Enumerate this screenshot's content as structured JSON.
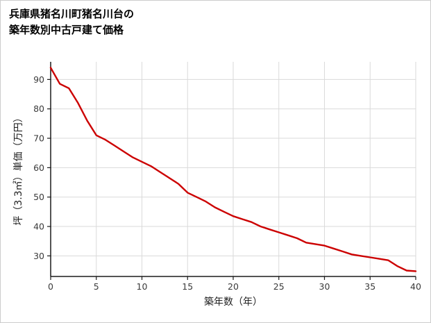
{
  "page": {
    "background": "#ffffff",
    "border_color": "#cccccc"
  },
  "chart_data": {
    "type": "line",
    "title": "兵庫県猪名川町猪名川台の築年数別中古戸建て価格",
    "title_lines": [
      "兵庫県猪名川町猪名川台の",
      "築年数別中古戸建て価格"
    ],
    "xlabel": "築年数（年）",
    "ylabel": "坪（3.3㎡）単価（万円）",
    "x": [
      0,
      1,
      2,
      3,
      4,
      5,
      6,
      7,
      8,
      9,
      10,
      11,
      12,
      13,
      14,
      15,
      16,
      17,
      18,
      19,
      20,
      21,
      22,
      23,
      24,
      25,
      26,
      27,
      28,
      29,
      30,
      31,
      32,
      33,
      34,
      35,
      36,
      37,
      38,
      39,
      40
    ],
    "values": [
      94,
      88.5,
      87,
      82,
      76,
      71,
      69.5,
      67.5,
      65.5,
      63.5,
      62,
      60.5,
      58.5,
      56.5,
      54.5,
      51.5,
      50,
      48.5,
      46.5,
      45,
      43.5,
      42.5,
      41.5,
      40,
      39,
      38,
      37,
      36,
      34.5,
      34,
      33.5,
      32.5,
      31.5,
      30.5,
      30,
      29.5,
      29,
      28.5,
      26.5,
      25,
      24.8
    ],
    "xlim": [
      0,
      40
    ],
    "ylim": [
      23,
      96
    ],
    "xticks": [
      0,
      5,
      10,
      15,
      20,
      25,
      30,
      35,
      40
    ],
    "yticks": [
      30,
      40,
      50,
      60,
      70,
      80,
      90
    ],
    "grid": true,
    "legend_position": "none",
    "line_color": "#cc0000",
    "axis_color": "#1a1a1a",
    "grid_color": "#dadada",
    "tick_label_color": "#3a3a3a",
    "axis_title_color": "#222222"
  }
}
